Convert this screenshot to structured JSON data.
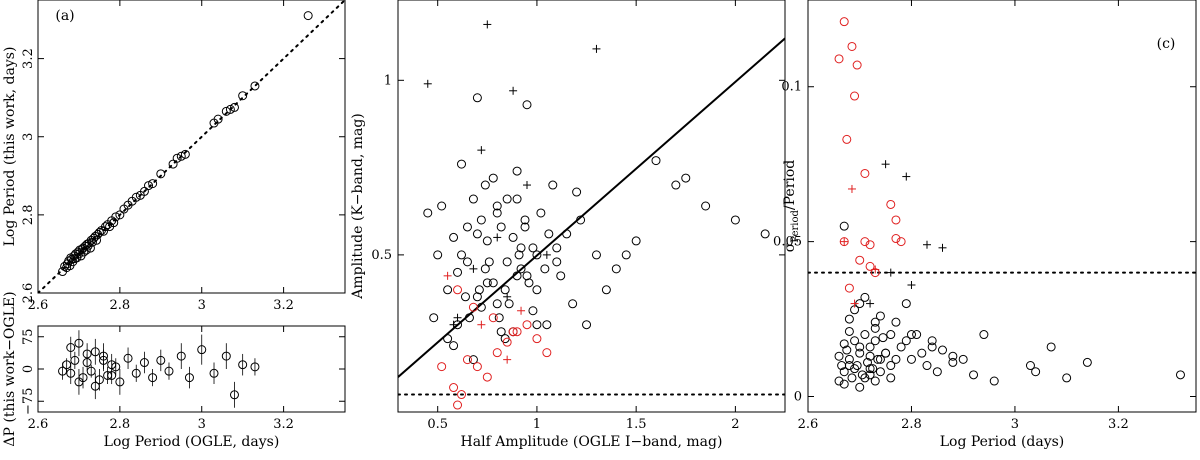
{
  "chart_data": [
    {
      "id": "a",
      "type": "scatter",
      "panel_label": "(a)",
      "title": "",
      "xlabel": "Log Period (OGLE, days)",
      "ylabel": "Log Period (this work, days)",
      "xlim": [
        2.6,
        3.35
      ],
      "ylim": [
        2.6,
        3.35
      ],
      "xticks": [
        2.6,
        2.8,
        3.0,
        3.2
      ],
      "xtick_labels": [
        "2.6",
        "2.8",
        "3",
        "3.2"
      ],
      "yticks": [
        2.6,
        2.8,
        3.0,
        3.2
      ],
      "ytick_labels": [
        "2.6",
        "2.8",
        "3",
        "3.2"
      ],
      "reference_line": {
        "style": "dotted",
        "description": "one-to-one",
        "points": [
          [
            2.6,
            2.6
          ],
          [
            3.35,
            3.35
          ]
        ]
      },
      "series": [
        {
          "name": "Stars",
          "marker": "circle",
          "color": "#000000",
          "x": [
            2.66,
            2.665,
            2.67,
            2.672,
            2.675,
            2.678,
            2.68,
            2.682,
            2.685,
            2.688,
            2.69,
            2.692,
            2.695,
            2.698,
            2.7,
            2.702,
            2.705,
            2.708,
            2.71,
            2.712,
            2.715,
            2.718,
            2.72,
            2.722,
            2.725,
            2.728,
            2.73,
            2.733,
            2.736,
            2.74,
            2.743,
            2.746,
            2.75,
            2.755,
            2.76,
            2.765,
            2.77,
            2.775,
            2.78,
            2.785,
            2.79,
            2.8,
            2.81,
            2.82,
            2.83,
            2.84,
            2.85,
            2.86,
            2.87,
            2.88,
            2.9,
            2.93,
            2.94,
            2.95,
            2.96,
            3.03,
            3.04,
            3.06,
            3.07,
            3.08,
            3.1,
            3.13,
            3.26
          ],
          "y": [
            2.655,
            2.668,
            2.665,
            2.675,
            2.682,
            2.67,
            2.69,
            2.686,
            2.68,
            2.695,
            2.688,
            2.7,
            2.69,
            2.705,
            2.7,
            2.71,
            2.695,
            2.712,
            2.715,
            2.705,
            2.72,
            2.71,
            2.725,
            2.72,
            2.728,
            2.715,
            2.735,
            2.73,
            2.74,
            2.745,
            2.735,
            2.75,
            2.755,
            2.76,
            2.758,
            2.77,
            2.775,
            2.77,
            2.785,
            2.78,
            2.795,
            2.8,
            2.815,
            2.825,
            2.835,
            2.845,
            2.85,
            2.86,
            2.875,
            2.88,
            2.905,
            2.93,
            2.945,
            2.95,
            2.955,
            3.035,
            3.045,
            3.065,
            3.07,
            3.075,
            3.105,
            3.13,
            3.31
          ]
        }
      ]
    },
    {
      "id": "a-residuals",
      "type": "scatter",
      "title": "",
      "xlabel": "Log Period (OGLE, days)",
      "ylabel": "ΔP (this work−OGLE)",
      "xlim": [
        2.6,
        3.35
      ],
      "ylim": [
        -100,
        100
      ],
      "xticks": [
        2.6,
        2.8,
        3.0,
        3.2
      ],
      "xtick_labels": [
        "2.6",
        "2.8",
        "3",
        "3.2"
      ],
      "yticks": [
        -75,
        0,
        75
      ],
      "ytick_labels": [
        "−75",
        "0",
        "75"
      ],
      "series": [
        {
          "name": "Residuals",
          "marker": "circle",
          "color": "#000000",
          "x": [
            2.66,
            2.67,
            2.68,
            2.69,
            2.7,
            2.71,
            2.72,
            2.73,
            2.74,
            2.75,
            2.76,
            2.77,
            2.78,
            2.79,
            2.8,
            2.82,
            2.84,
            2.86,
            2.88,
            2.9,
            2.92,
            2.95,
            2.97,
            3.0,
            3.03,
            3.06,
            3.08,
            3.1,
            3.13,
            2.68,
            2.7,
            2.72,
            2.74,
            2.76,
            2.78
          ],
          "y": [
            -5,
            10,
            -10,
            20,
            60,
            -20,
            15,
            -5,
            40,
            -25,
            30,
            -15,
            10,
            5,
            -30,
            25,
            -10,
            15,
            -20,
            20,
            -5,
            30,
            -20,
            45,
            -10,
            30,
            -60,
            10,
            5,
            50,
            -30,
            35,
            -40,
            20,
            -15
          ],
          "err": [
            20,
            15,
            25,
            20,
            30,
            25,
            20,
            15,
            30,
            25,
            30,
            20,
            25,
            20,
            30,
            25,
            20,
            25,
            20,
            25,
            20,
            30,
            25,
            35,
            25,
            30,
            30,
            25,
            20,
            25,
            30,
            25,
            30,
            25,
            20
          ]
        }
      ]
    },
    {
      "id": "b",
      "type": "scatter",
      "title": "",
      "xlabel": "Half Amplitude (OGLE I−band, mag)",
      "ylabel": "Amplitude (K−band, mag)",
      "xlim": [
        0.3,
        2.25
      ],
      "ylim": [
        0.05,
        1.23
      ],
      "xticks": [
        0.5,
        1.0,
        1.5,
        2.0
      ],
      "xtick_labels": [
        "0.5",
        "1",
        "1.5",
        "2"
      ],
      "yticks": [
        0.5,
        1.0
      ],
      "ytick_labels": [
        "0.5",
        "1"
      ],
      "fit_line": {
        "style": "solid",
        "points": [
          [
            0.3,
            0.15
          ],
          [
            2.25,
            1.12
          ]
        ]
      },
      "threshold_line": {
        "style": "dotted",
        "y": 0.1
      },
      "series": [
        {
          "name": "Circles (black)",
          "marker": "circle",
          "color": "#000000",
          "x": [
            0.45,
            0.48,
            0.5,
            0.52,
            0.55,
            0.58,
            0.6,
            0.62,
            0.65,
            0.68,
            0.7,
            0.72,
            0.75,
            0.78,
            0.8,
            0.82,
            0.85,
            0.88,
            0.9,
            0.92,
            0.95,
            0.98,
            1.0,
            1.02,
            1.05,
            1.08,
            1.1,
            1.12,
            1.15,
            1.18,
            1.2,
            1.22,
            1.25,
            1.3,
            1.35,
            1.4,
            1.45,
            1.5,
            1.6,
            1.7,
            1.75,
            1.85,
            2.0,
            2.15,
            0.65,
            0.75,
            0.85,
            0.95,
            0.7,
            0.8,
            0.9,
            1.0,
            0.6,
            0.72,
            0.82,
            0.88,
            0.92,
            0.68,
            0.78,
            0.98,
            0.55,
            0.62,
            0.74,
            0.84,
            0.94,
            1.06,
            0.66,
            0.76,
            0.86,
            0.96,
            0.58,
            0.7,
            0.8,
            0.9,
            1.0,
            1.1,
            0.64,
            0.74,
            0.84,
            0.94,
            1.04,
            0.71,
            0.81,
            0.91
          ],
          "y": [
            0.62,
            0.32,
            0.5,
            0.64,
            0.4,
            0.55,
            0.3,
            0.76,
            0.48,
            0.2,
            0.95,
            0.6,
            0.42,
            0.72,
            0.36,
            0.58,
            0.66,
            0.28,
            0.74,
            0.46,
            0.93,
            0.52,
            0.4,
            0.62,
            0.3,
            0.7,
            0.48,
            0.44,
            0.56,
            0.36,
            0.68,
            0.6,
            0.3,
            0.5,
            0.4,
            0.46,
            0.5,
            0.54,
            0.77,
            0.7,
            0.72,
            0.64,
            0.6,
            0.56,
            0.58,
            0.54,
            0.48,
            0.44,
            0.38,
            0.62,
            0.66,
            0.5,
            0.45,
            0.35,
            0.28,
            0.55,
            0.52,
            0.66,
            0.42,
            0.34,
            0.26,
            0.5,
            0.46,
            0.4,
            0.6,
            0.56,
            0.32,
            0.48,
            0.36,
            0.42,
            0.24,
            0.56,
            0.64,
            0.44,
            0.3,
            0.52,
            0.38,
            0.7,
            0.26,
            0.58,
            0.46,
            0.4,
            0.32,
            0.5
          ]
        },
        {
          "name": "Crosses (black)",
          "marker": "cross",
          "color": "#000000",
          "x": [
            0.45,
            0.75,
            0.88,
            1.3,
            0.6,
            0.72,
            0.8,
            0.95,
            1.05,
            0.68,
            0.85,
            0.58
          ],
          "y": [
            0.99,
            1.16,
            0.97,
            1.09,
            0.32,
            0.8,
            0.55,
            0.7,
            0.5,
            0.46,
            0.38,
            0.3
          ]
        },
        {
          "name": "Circles (red)",
          "marker": "circle",
          "color": "#e02020",
          "x": [
            0.6,
            0.62,
            0.58,
            0.65,
            0.7,
            0.75,
            0.8,
            0.85,
            0.9,
            0.95,
            1.0,
            1.05,
            0.6,
            0.68,
            0.78,
            0.88,
            0.52
          ],
          "y": [
            0.07,
            0.1,
            0.12,
            0.2,
            0.18,
            0.15,
            0.22,
            0.25,
            0.28,
            0.3,
            0.26,
            0.22,
            0.4,
            0.35,
            0.32,
            0.28,
            0.18
          ]
        },
        {
          "name": "Crosses (red)",
          "marker": "cross",
          "color": "#e02020",
          "x": [
            0.55,
            0.72,
            0.85,
            0.92
          ],
          "y": [
            0.44,
            0.3,
            0.2,
            0.34
          ]
        }
      ]
    },
    {
      "id": "c",
      "type": "scatter",
      "panel_label": "(c)",
      "title": "",
      "xlabel": "Log Period (days)",
      "ylabel": "σPeriod/Period",
      "ylabel_main": "σ",
      "ylabel_sub": "Period",
      "ylabel_tail": "/Period",
      "xlim": [
        2.6,
        3.35
      ],
      "ylim": [
        -0.005,
        0.128
      ],
      "xticks": [
        2.6,
        2.8,
        3.0,
        3.2
      ],
      "xtick_labels": [
        "2.6",
        "2.8",
        "3",
        "3.2"
      ],
      "yticks": [
        0,
        0.05,
        0.1
      ],
      "ytick_labels": [
        "0",
        "0.05",
        "0.1"
      ],
      "threshold_line": {
        "style": "dotted",
        "y": 0.04
      },
      "series": [
        {
          "name": "Circles (black)",
          "marker": "circle",
          "color": "#000000",
          "x": [
            2.66,
            2.665,
            2.67,
            2.675,
            2.68,
            2.685,
            2.69,
            2.695,
            2.7,
            2.705,
            2.71,
            2.715,
            2.72,
            2.725,
            2.73,
            2.735,
            2.74,
            2.745,
            2.75,
            2.76,
            2.77,
            2.78,
            2.79,
            2.8,
            2.81,
            2.82,
            2.83,
            2.84,
            2.85,
            2.86,
            2.88,
            2.9,
            2.92,
            2.94,
            2.96,
            3.03,
            3.04,
            3.07,
            3.1,
            3.14,
            3.32,
            2.66,
            2.67,
            2.68,
            2.69,
            2.7,
            2.71,
            2.72,
            2.73,
            2.74,
            2.68,
            2.7,
            2.72,
            2.74,
            2.76,
            2.67,
            2.69,
            2.71,
            2.73,
            2.75,
            2.77,
            2.79,
            2.68,
            2.72,
            2.76,
            2.8,
            2.84,
            2.88,
            2.67,
            2.7,
            2.73
          ],
          "y": [
            0.005,
            0.01,
            0.008,
            0.015,
            0.012,
            0.006,
            0.018,
            0.01,
            0.014,
            0.007,
            0.02,
            0.011,
            0.016,
            0.009,
            0.022,
            0.012,
            0.008,
            0.019,
            0.014,
            0.01,
            0.024,
            0.016,
            0.03,
            0.012,
            0.02,
            0.014,
            0.01,
            0.018,
            0.008,
            0.015,
            0.013,
            0.012,
            0.007,
            0.02,
            0.005,
            0.01,
            0.008,
            0.016,
            0.006,
            0.011,
            0.007,
            0.013,
            0.017,
            0.021,
            0.009,
            0.016,
            0.006,
            0.013,
            0.018,
            0.026,
            0.025,
            0.03,
            0.007,
            0.012,
            0.02,
            0.055,
            0.028,
            0.032,
            0.024,
            0.014,
            0.012,
            0.018,
            0.01,
            0.009,
            0.006,
            0.02,
            0.016,
            0.011,
            0.004,
            0.003,
            0.005
          ]
        },
        {
          "name": "Crosses (black)",
          "marker": "cross",
          "color": "#000000",
          "x": [
            2.75,
            2.79,
            2.83,
            2.86,
            2.76,
            2.72,
            2.8
          ],
          "y": [
            0.075,
            0.071,
            0.049,
            0.048,
            0.04,
            0.03,
            0.036
          ]
        },
        {
          "name": "Circles (red)",
          "marker": "circle",
          "color": "#e02020",
          "x": [
            2.67,
            2.66,
            2.685,
            2.695,
            2.69,
            2.675,
            2.71,
            2.76,
            2.77,
            2.78,
            2.77,
            2.71,
            2.72,
            2.72,
            2.73,
            2.7,
            2.67,
            2.68
          ],
          "y": [
            0.121,
            0.109,
            0.113,
            0.107,
            0.097,
            0.083,
            0.072,
            0.062,
            0.057,
            0.05,
            0.051,
            0.05,
            0.049,
            0.042,
            0.04,
            0.044,
            0.05,
            0.035
          ]
        },
        {
          "name": "Crosses (red)",
          "marker": "cross",
          "color": "#e02020",
          "x": [
            2.685,
            2.73,
            2.67,
            2.69
          ],
          "y": [
            0.067,
            0.041,
            0.05,
            0.03
          ]
        }
      ]
    }
  ]
}
